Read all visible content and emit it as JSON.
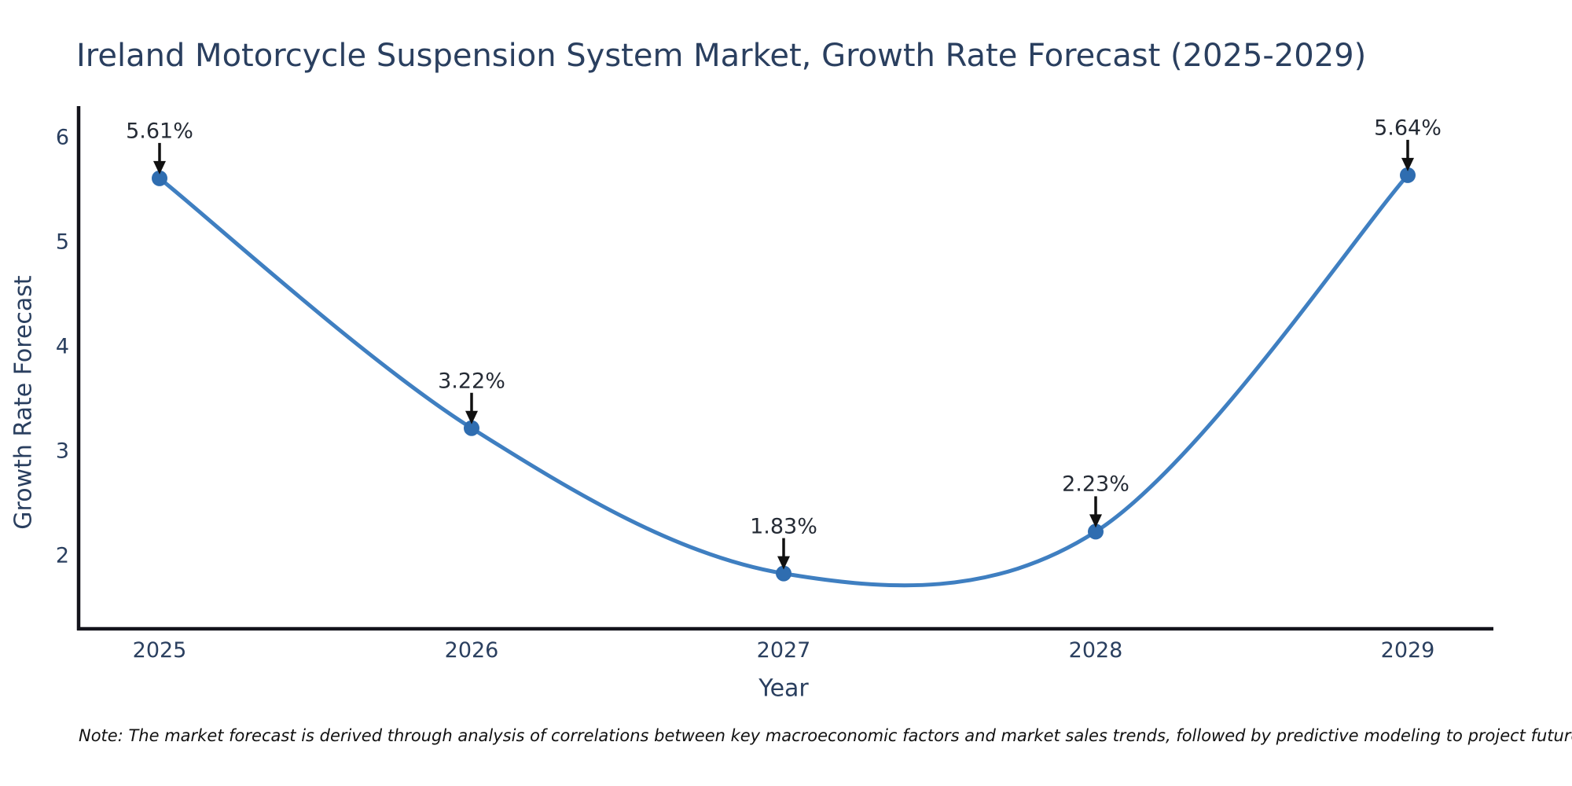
{
  "title": "Ireland Motorcycle Suspension System Market, Growth Rate Forecast (2025-2029)",
  "note": "Note: The market forecast is derived through analysis of correlations between key macroeconomic factors and market sales trends, followed by predictive modeling to project future sales.",
  "x_axis": {
    "title": "Year"
  },
  "y_axis": {
    "title": "Growth Rate Forecast"
  },
  "colors": {
    "line": "#3f7fc1",
    "marker": "#2f6db0",
    "axis": "#13131b",
    "text": "#2a3f5f",
    "annotation_text": "#252b35",
    "arrow": "#111111",
    "background": "#ffffff"
  },
  "chart_data": {
    "type": "line",
    "title": "Ireland Motorcycle Suspension System Market, Growth Rate Forecast (2025-2029)",
    "x": [
      2025,
      2026,
      2027,
      2028,
      2029
    ],
    "values": [
      5.61,
      3.22,
      1.83,
      2.23,
      5.64
    ],
    "point_labels": [
      "5.61%",
      "3.22%",
      "1.83%",
      "2.23%",
      "5.64%"
    ],
    "xlabel": "Year",
    "ylabel": "Growth Rate Forecast",
    "x_tick_labels": [
      "2025",
      "2026",
      "2027",
      "2028",
      "2029"
    ],
    "yticks": [
      2,
      3,
      4,
      5,
      6
    ],
    "ylim": [
      1.3,
      6.3
    ],
    "unit": "%",
    "line_shape": "spline",
    "grid": false,
    "legend": false,
    "annotation_style": "value label above point with down arrow"
  }
}
